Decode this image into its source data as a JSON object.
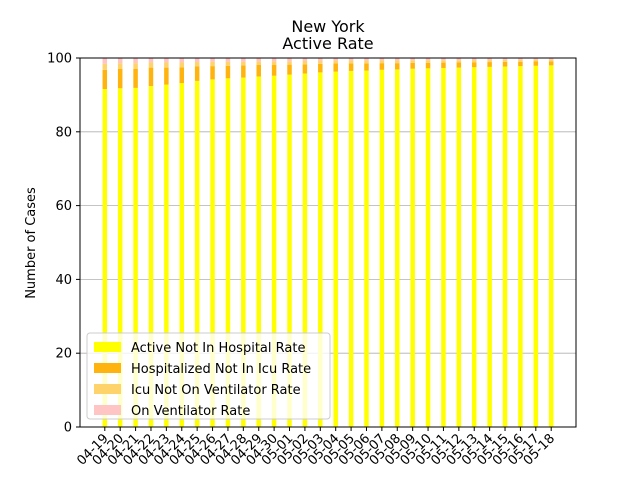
{
  "chart_data": {
    "type": "bar",
    "stacked": true,
    "title": "New York",
    "subtitle": "Active Rate",
    "xlabel": "",
    "ylabel": "Number of Cases",
    "ylim": [
      0,
      100
    ],
    "yticks": [
      0,
      20,
      40,
      60,
      80,
      100
    ],
    "grid": "horizontal",
    "legend_position": "lower-left",
    "categories": [
      "04-19",
      "04-20",
      "04-21",
      "04-22",
      "04-23",
      "04-24",
      "04-25",
      "04-26",
      "04-27",
      "04-28",
      "04-29",
      "04-30",
      "05-01",
      "05-02",
      "05-03",
      "05-04",
      "05-05",
      "05-06",
      "05-07",
      "05-08",
      "05-09",
      "05-10",
      "05-11",
      "05-12",
      "05-13",
      "05-14",
      "05-15",
      "05-16",
      "05-17",
      "05-18"
    ],
    "series": [
      {
        "name": "Active Not In Hospital Rate",
        "color": "#ffff00",
        "values": [
          91.6,
          91.8,
          91.9,
          92.4,
          92.8,
          93.2,
          93.8,
          94.2,
          94.5,
          94.7,
          95.0,
          95.2,
          95.5,
          95.8,
          96.1,
          96.3,
          96.5,
          96.6,
          96.8,
          96.9,
          97.1,
          97.2,
          97.3,
          97.4,
          97.5,
          97.6,
          97.7,
          97.8,
          97.9,
          98.0
        ]
      },
      {
        "name": "Hospitalized Not In Icu Rate",
        "color": "#ffb30f",
        "values": [
          5.2,
          5.3,
          5.2,
          5.0,
          4.6,
          4.3,
          3.9,
          3.6,
          3.4,
          3.3,
          3.1,
          2.9,
          2.7,
          2.5,
          2.3,
          2.2,
          2.0,
          1.9,
          1.8,
          1.7,
          1.6,
          1.5,
          1.45,
          1.4,
          1.35,
          1.3,
          1.25,
          1.2,
          1.15,
          1.1
        ]
      },
      {
        "name": "Icu Not On Ventilator Rate",
        "color": "#ffd36b",
        "values": [
          1.6,
          1.5,
          1.5,
          1.4,
          1.4,
          1.3,
          1.2,
          1.2,
          1.1,
          1.0,
          1.0,
          1.0,
          0.9,
          0.9,
          0.8,
          0.8,
          0.8,
          0.8,
          0.7,
          0.7,
          0.7,
          0.7,
          0.65,
          0.6,
          0.6,
          0.55,
          0.55,
          0.5,
          0.5,
          0.45
        ]
      },
      {
        "name": "On Ventilator Rate",
        "color": "#ffc4c4",
        "values": [
          1.6,
          1.4,
          1.4,
          1.2,
          1.2,
          1.2,
          1.1,
          1.0,
          1.0,
          1.0,
          0.9,
          0.9,
          0.9,
          0.8,
          0.8,
          0.7,
          0.7,
          0.7,
          0.7,
          0.7,
          0.6,
          0.6,
          0.6,
          0.6,
          0.55,
          0.55,
          0.5,
          0.5,
          0.45,
          0.45
        ]
      }
    ]
  }
}
